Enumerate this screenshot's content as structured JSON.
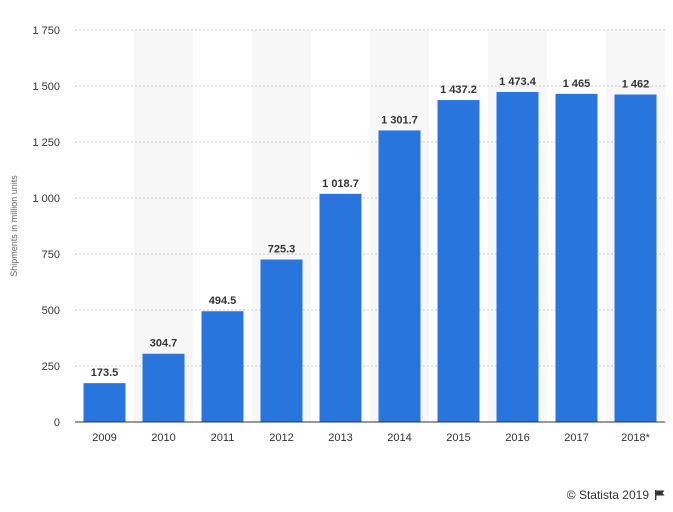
{
  "chart_data": {
    "type": "bar",
    "categories": [
      "2009",
      "2010",
      "2011",
      "2012",
      "2013",
      "2014",
      "2015",
      "2016",
      "2017",
      "2018*"
    ],
    "values": [
      173.5,
      304.7,
      494.5,
      725.3,
      1018.7,
      1301.7,
      1437.2,
      1473.4,
      1465,
      1462
    ],
    "value_labels": [
      "173.5",
      "304.7",
      "494.5",
      "725.3",
      "1 018.7",
      "1 301.7",
      "1 437.2",
      "1 473.4",
      "1 465",
      "1 462"
    ],
    "ylabel": "Shipments in million units",
    "ylim": [
      0,
      1750
    ],
    "yticks": [
      0,
      250,
      500,
      750,
      1000,
      1250,
      1500,
      1750
    ],
    "ytick_labels": [
      "0",
      "250",
      "500",
      "750",
      "1 000",
      "1 250",
      "1 500",
      "1 750"
    ],
    "grid": true,
    "bar_color": "#2876dd",
    "band_color": "#f7f7f7"
  },
  "credit": {
    "text": "© Statista 2019",
    "icon": "flag-icon"
  }
}
